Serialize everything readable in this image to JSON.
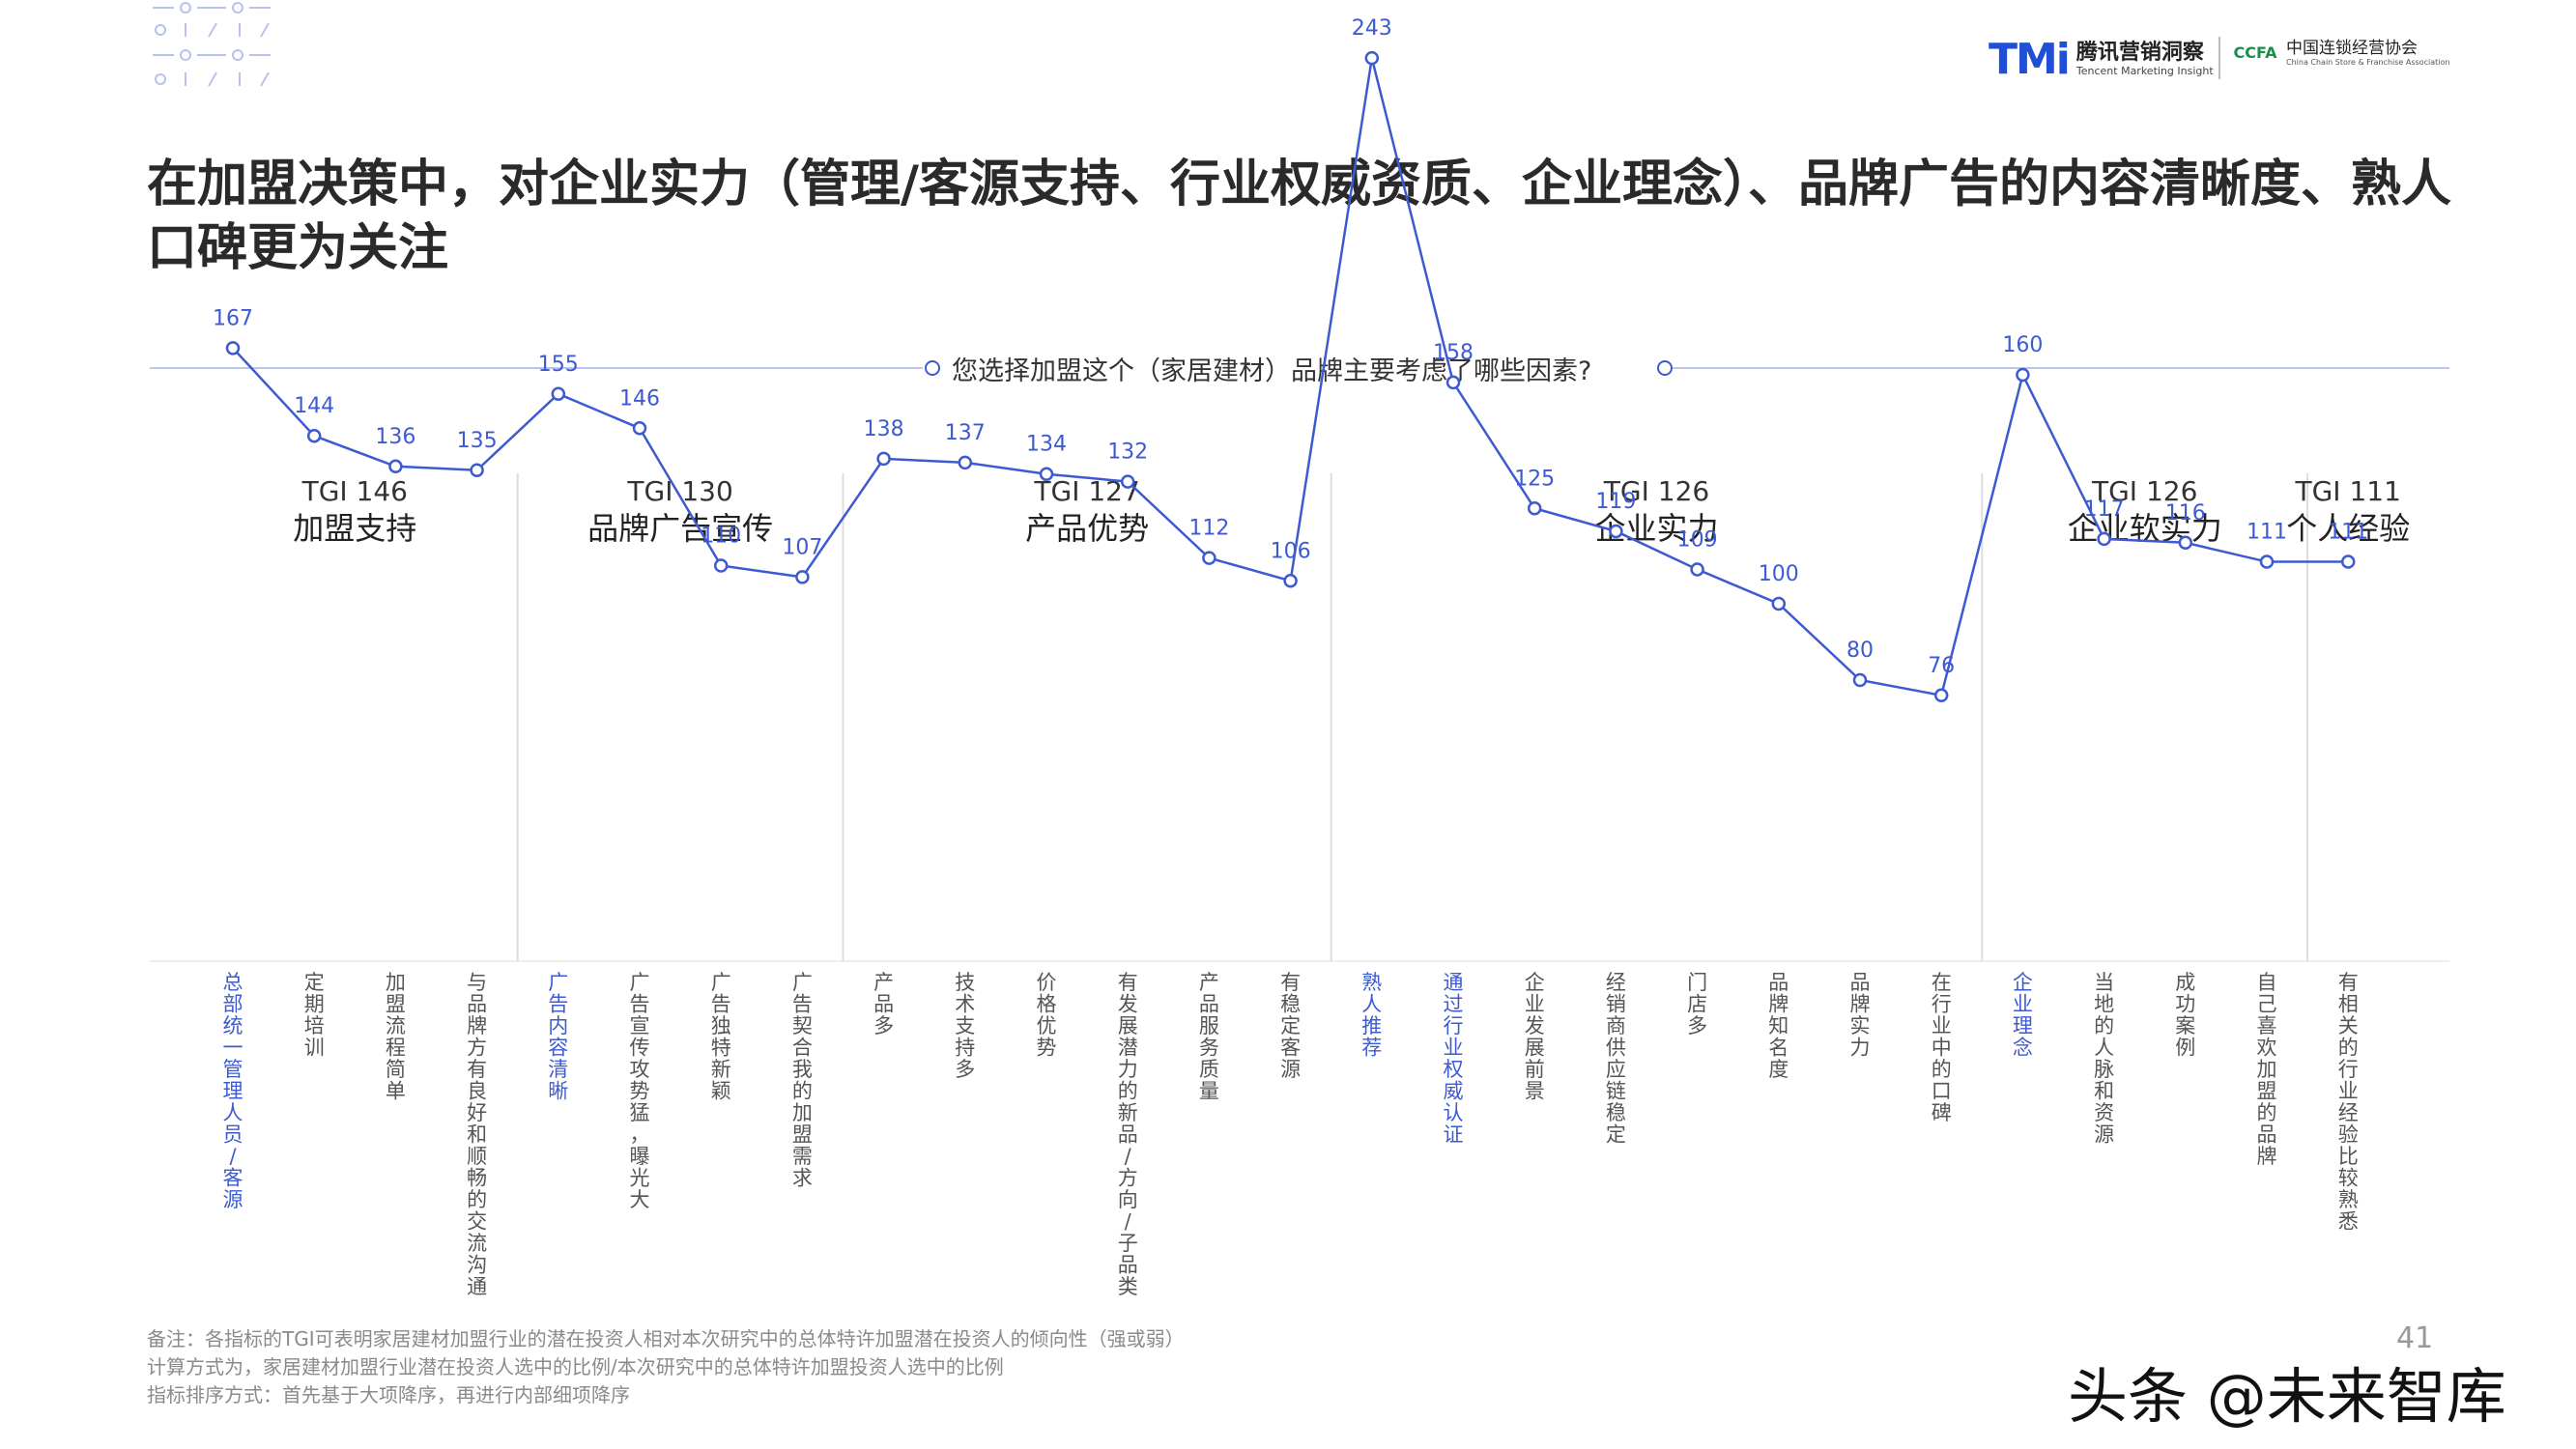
{
  "header": {
    "tmi_mark": "TMi",
    "tmi_cn": "腾讯营销洞察",
    "tmi_en": "Tencent Marketing Insight",
    "ccfa_mark": "CCFA",
    "ccfa_cn": "中国连锁经营协会",
    "ccfa_en": "China Chain Store & Franchise Association"
  },
  "title": "在加盟决策中，对企业实力（管理/客源支持、行业权威资质、企业理念）、品牌广告的内容清晰度、熟人口碑更为关注",
  "question": "您选择加盟这个（家居建材）品牌主要考虑了哪些因素?",
  "colors": {
    "accent": "#3d5ad1",
    "highlight_label": "#3d5ad1",
    "normal_label": "#555555",
    "divider": "#dddddd"
  },
  "chart_data": {
    "type": "line",
    "groups": [
      {
        "tgi": "TGI 146",
        "name": "加盟支持",
        "count": 4
      },
      {
        "tgi": "TGI 130",
        "name": "品牌广告宣传",
        "count": 4
      },
      {
        "tgi": "TGI 127",
        "name": "产品优势",
        "count": 6
      },
      {
        "tgi": "TGI 126",
        "name": "企业实力",
        "count": 8
      },
      {
        "tgi": "TGI 126",
        "name": "企业软实力",
        "count": 4
      },
      {
        "tgi": "TGI 111",
        "name": "个人经验",
        "count": 1
      }
    ],
    "categories": [
      "总部统一管理人员/客源",
      "定期培训",
      "加盟流程简单",
      "与品牌方有良好和顺畅的交流沟通",
      "广告内容清晰",
      "广告宣传攻势猛，曝光大",
      "广告独特新颖",
      "广告契合我的加盟需求",
      "产品多",
      "技术支持多",
      "价格优势",
      "有发展潜力的新品/方向/子品类",
      "产品服务质量",
      "有稳定客源",
      "熟人推荐",
      "通过行业权威认证",
      "企业发展前景",
      "经销商供应链稳定",
      "门店多",
      "品牌知名度",
      "品牌实力",
      "在行业中的口碑",
      "企业理念",
      "当地的人脉和资源",
      "成功案例",
      "自己喜欢加盟的品牌",
      "有相关的行业经验比较熟悉"
    ],
    "values": [
      167,
      144,
      136,
      135,
      155,
      146,
      110,
      107,
      138,
      137,
      134,
      132,
      112,
      106,
      243,
      158,
      125,
      119,
      109,
      100,
      80,
      76,
      160,
      117,
      116,
      111,
      111
    ],
    "highlighted": [
      0,
      4,
      14,
      15,
      22
    ],
    "ylim": [
      0,
      260
    ]
  },
  "notes": [
    "备注：各指标的TGI可表明家居建材加盟行业的潜在投资人相对本次研究中的总体特许加盟潜在投资人的倾向性（强或弱）",
    "计算方式为，家居建材加盟行业潜在投资人选中的比例/本次研究中的总体特许加盟投资人选中的比例",
    "指标排序方式：首先基于大项降序，再进行内部细项降序"
  ],
  "page_number": "41",
  "watermark": "头条 @未来智库"
}
